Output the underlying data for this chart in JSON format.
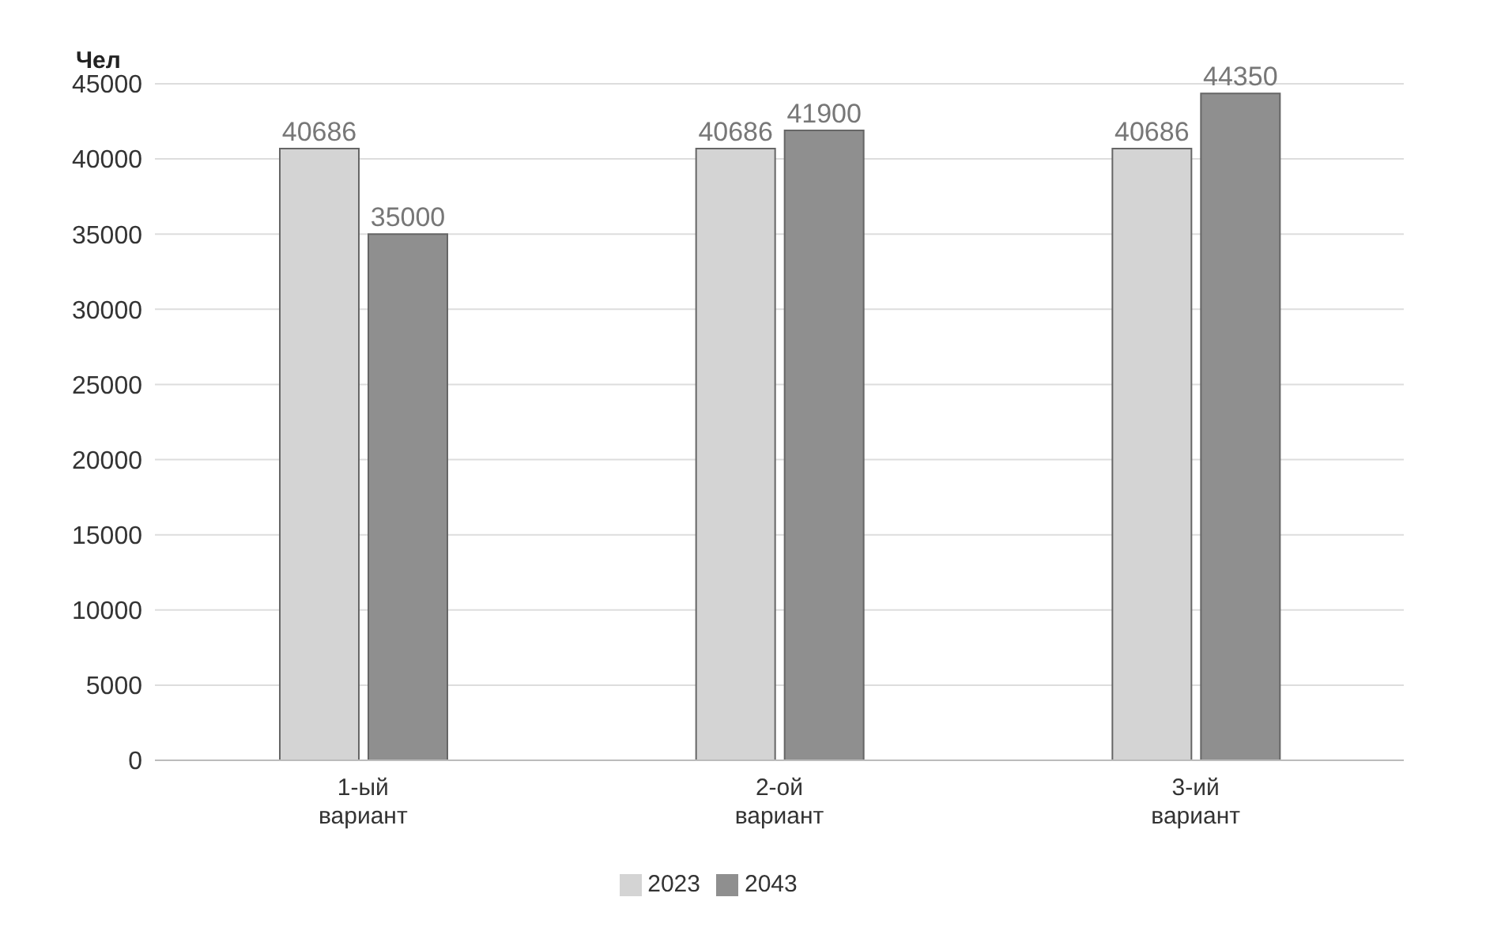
{
  "chart_data": {
    "type": "bar",
    "ylabel": "Чел",
    "categories": [
      "1-ый вариант",
      "2-ой вариант",
      "3-ий вариант"
    ],
    "series": [
      {
        "name": "2023",
        "color": "#d4d4d4",
        "values": [
          40686,
          40686,
          40686
        ]
      },
      {
        "name": "2043",
        "color": "#8f8f8f",
        "values": [
          35000,
          41900,
          44350
        ]
      }
    ],
    "ylim": [
      0,
      45000
    ],
    "yticks": [
      0,
      5000,
      10000,
      15000,
      20000,
      25000,
      30000,
      35000,
      40000,
      45000
    ],
    "grid": "y",
    "legend": "bottom",
    "data_labels": true
  }
}
